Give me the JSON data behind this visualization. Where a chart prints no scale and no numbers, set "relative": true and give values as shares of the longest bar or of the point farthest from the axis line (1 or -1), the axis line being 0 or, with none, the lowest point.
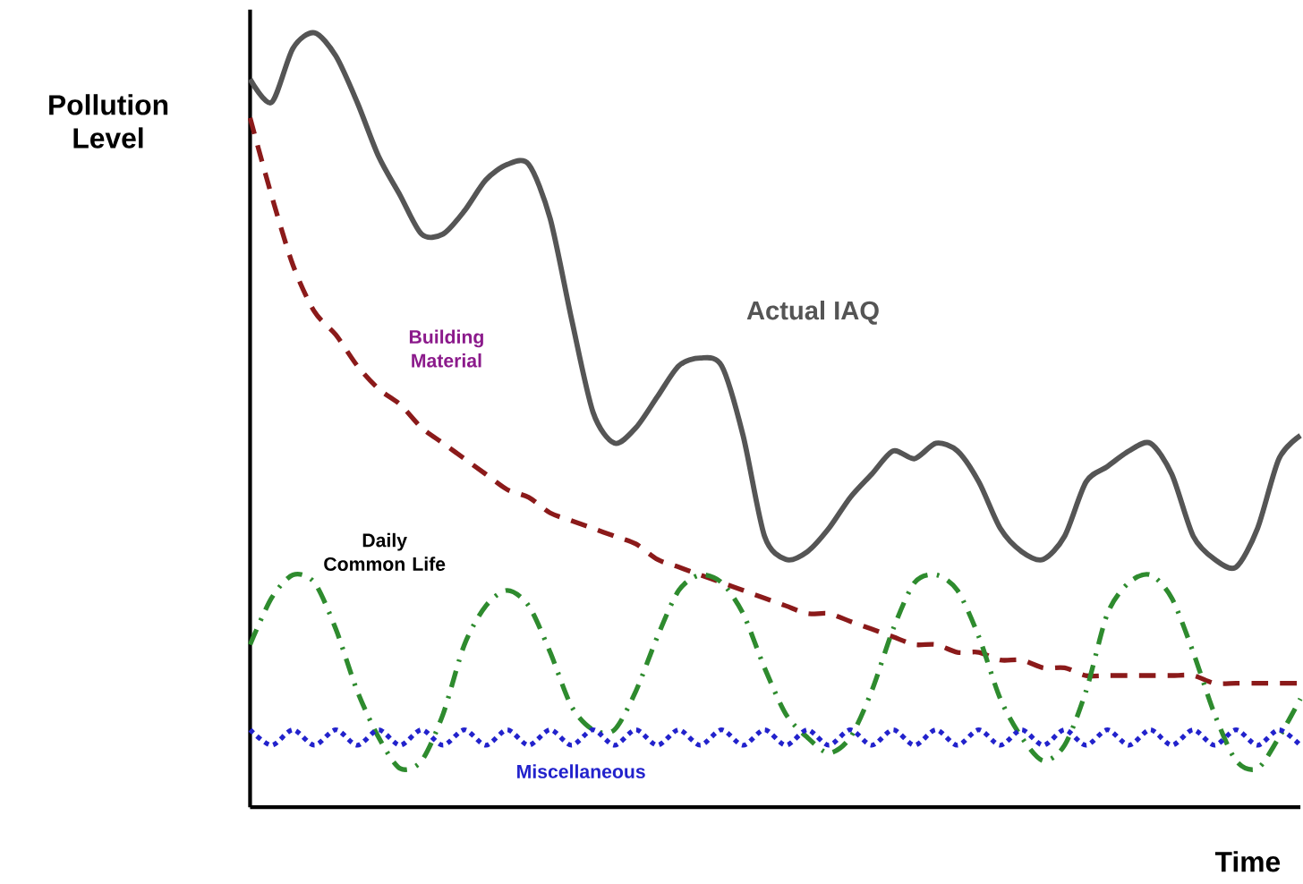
{
  "chart_data": {
    "type": "line",
    "relative": true,
    "xlabel": "Time",
    "ylabel": "Pollution Level",
    "categories": [
      null,
      null,
      null,
      null,
      null,
      null,
      null,
      null,
      null,
      null,
      null,
      null,
      null,
      null,
      null,
      null,
      null,
      null,
      null,
      null,
      null,
      null,
      null,
      null,
      null,
      null,
      null,
      null,
      null,
      null,
      null,
      null,
      null,
      null,
      null,
      null,
      null,
      null,
      null,
      null,
      null,
      null,
      null,
      null,
      null,
      null,
      null,
      null,
      null,
      null
    ],
    "series": [
      {
        "name": "Actual IAQ",
        "color": "#555555",
        "line_style": "solid",
        "values": [
          0.94,
          0.91,
          0.98,
          1.0,
          0.97,
          0.91,
          0.84,
          0.79,
          0.74,
          0.74,
          0.77,
          0.81,
          0.83,
          0.83,
          0.76,
          0.63,
          0.51,
          0.47,
          0.49,
          0.53,
          0.57,
          0.58,
          0.57,
          0.48,
          0.35,
          0.32,
          0.33,
          0.36,
          0.4,
          0.43,
          0.46,
          0.45,
          0.47,
          0.46,
          0.42,
          0.36,
          0.33,
          0.32,
          0.35,
          0.42,
          0.44,
          0.46,
          0.47,
          0.43,
          0.35,
          0.32,
          0.31,
          0.36,
          0.45,
          0.48
        ]
      },
      {
        "name": "Building Material",
        "color": "#8b1a1a",
        "line_style": "dashed",
        "values": [
          0.89,
          0.79,
          0.7,
          0.64,
          0.61,
          0.57,
          0.54,
          0.52,
          0.49,
          0.47,
          0.45,
          0.43,
          0.41,
          0.4,
          0.38,
          0.37,
          0.36,
          0.35,
          0.34,
          0.32,
          0.31,
          0.3,
          0.29,
          0.28,
          0.27,
          0.26,
          0.25,
          0.25,
          0.24,
          0.23,
          0.22,
          0.21,
          0.21,
          0.2,
          0.2,
          0.19,
          0.19,
          0.18,
          0.18,
          0.17,
          0.17,
          0.17,
          0.17,
          0.17,
          0.17,
          0.16,
          0.16,
          0.16,
          0.16,
          0.16
        ]
      },
      {
        "name": "Daily Common Life",
        "color": "#2e8b2e",
        "line_style": "dashdot",
        "values": [
          0.21,
          0.27,
          0.3,
          0.29,
          0.23,
          0.15,
          0.09,
          0.05,
          0.06,
          0.12,
          0.21,
          0.26,
          0.28,
          0.26,
          0.2,
          0.13,
          0.1,
          0.1,
          0.15,
          0.22,
          0.28,
          0.3,
          0.29,
          0.25,
          0.18,
          0.12,
          0.09,
          0.07,
          0.09,
          0.15,
          0.23,
          0.29,
          0.3,
          0.28,
          0.22,
          0.14,
          0.09,
          0.06,
          0.08,
          0.15,
          0.25,
          0.29,
          0.3,
          0.27,
          0.2,
          0.12,
          0.06,
          0.05,
          0.09,
          0.14
        ]
      },
      {
        "name": "Miscellaneous",
        "color": "#2222cc",
        "line_style": "dotted",
        "values": [
          0.1,
          0.08,
          0.1,
          0.08,
          0.1,
          0.08,
          0.1,
          0.08,
          0.1,
          0.08,
          0.1,
          0.08,
          0.1,
          0.08,
          0.1,
          0.08,
          0.1,
          0.08,
          0.1,
          0.08,
          0.1,
          0.08,
          0.1,
          0.08,
          0.1,
          0.08,
          0.1,
          0.08,
          0.1,
          0.08,
          0.1,
          0.08,
          0.1,
          0.08,
          0.1,
          0.08,
          0.1,
          0.08,
          0.1,
          0.08,
          0.1,
          0.08,
          0.1,
          0.08,
          0.1,
          0.08,
          0.1,
          0.08,
          0.1,
          0.08
        ]
      }
    ]
  }
}
